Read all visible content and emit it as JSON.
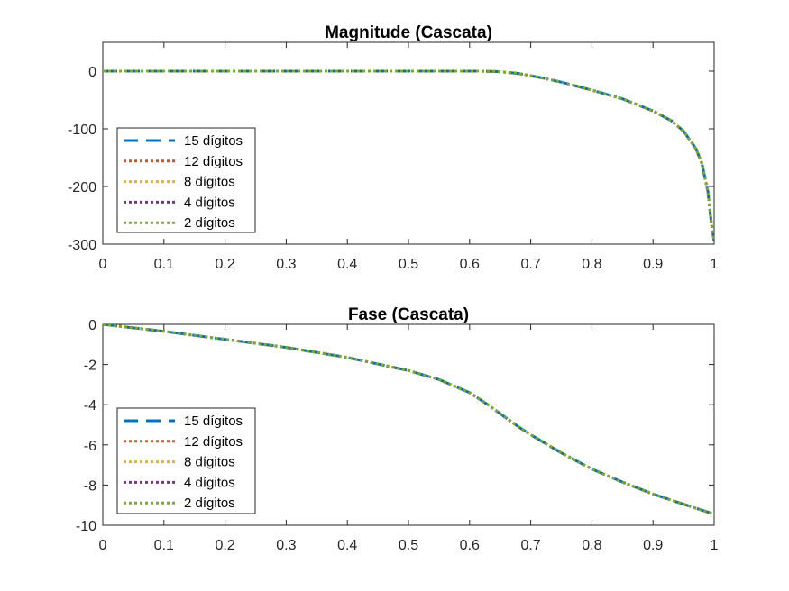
{
  "chart_data": [
    {
      "type": "line",
      "title": "Magnitude (Cascata)",
      "xlabel": "",
      "ylabel": "",
      "xlim": [
        0,
        1
      ],
      "ylim": [
        -300,
        50
      ],
      "xticks": [
        "0",
        "0.1",
        "0.2",
        "0.3",
        "0.4",
        "0.5",
        "0.6",
        "0.7",
        "0.8",
        "0.9",
        "1"
      ],
      "yticks": [
        "0",
        "-100",
        "-200",
        "-300"
      ],
      "ytick_values": [
        0,
        -100,
        -200,
        -300
      ],
      "grid": false,
      "legend_position": "lower-left",
      "x": [
        0,
        0.1,
        0.2,
        0.3,
        0.4,
        0.5,
        0.6,
        0.62,
        0.65,
        0.68,
        0.7,
        0.72,
        0.75,
        0.8,
        0.85,
        0.9,
        0.93,
        0.95,
        0.97,
        0.98,
        0.99,
        0.995,
        1.0
      ],
      "series": [
        {
          "name": "15 dígitos",
          "color": "#0072BD",
          "style": "dashed",
          "values": [
            0,
            0,
            0,
            0,
            0,
            0,
            0,
            0,
            -1,
            -4,
            -8,
            -12,
            -19,
            -33,
            -48,
            -69,
            -86,
            -104,
            -134,
            -160,
            -210,
            -260,
            -295
          ]
        },
        {
          "name": "12 dígitos",
          "color": "#D95319",
          "style": "dotted",
          "values": [
            0,
            0,
            0,
            0,
            0,
            0,
            0,
            0,
            -1,
            -4,
            -8,
            -12,
            -19,
            -33,
            -48,
            -69,
            -86,
            -104,
            -134,
            -160,
            -210,
            -260,
            -295
          ]
        },
        {
          "name": "8 dígitos",
          "color": "#EDB120",
          "style": "dotted",
          "values": [
            0,
            0,
            0,
            0,
            0,
            0,
            0,
            0,
            -1,
            -4,
            -8,
            -12,
            -19,
            -33,
            -48,
            -69,
            -86,
            -104,
            -134,
            -160,
            -210,
            -260,
            -295
          ]
        },
        {
          "name": "4 dígitos",
          "color": "#7E2F8E",
          "style": "dotted",
          "values": [
            0,
            0,
            0,
            0,
            0,
            0,
            0,
            0,
            -1,
            -4,
            -8,
            -12,
            -19,
            -33,
            -48,
            -69,
            -86,
            -104,
            -134,
            -160,
            -210,
            -260,
            -295
          ]
        },
        {
          "name": "2 dígitos",
          "color": "#77AC30",
          "style": "dotted",
          "values": [
            0,
            0,
            0,
            0,
            0,
            0,
            0,
            0,
            -1,
            -4,
            -8,
            -12,
            -19,
            -33,
            -48,
            -69,
            -86,
            -104,
            -134,
            -160,
            -210,
            -260,
            -295
          ]
        }
      ]
    },
    {
      "type": "line",
      "title": "Fase (Cascata)",
      "xlabel": "",
      "ylabel": "",
      "xlim": [
        0,
        1
      ],
      "ylim": [
        -10,
        0
      ],
      "xticks": [
        "0",
        "0.1",
        "0.2",
        "0.3",
        "0.4",
        "0.5",
        "0.6",
        "0.7",
        "0.8",
        "0.9",
        "1"
      ],
      "yticks": [
        "0",
        "-2",
        "-4",
        "-6",
        "-8",
        "-10"
      ],
      "ytick_values": [
        0,
        -2,
        -4,
        -6,
        -8,
        -10
      ],
      "grid": false,
      "legend_position": "lower-left",
      "x": [
        0,
        0.1,
        0.2,
        0.3,
        0.4,
        0.5,
        0.55,
        0.6,
        0.63,
        0.65,
        0.68,
        0.7,
        0.75,
        0.8,
        0.85,
        0.9,
        0.95,
        1.0
      ],
      "series": [
        {
          "name": "15 dígitos",
          "color": "#0072BD",
          "style": "dashed",
          "values": [
            0,
            -0.35,
            -0.75,
            -1.15,
            -1.65,
            -2.3,
            -2.75,
            -3.4,
            -4.0,
            -4.45,
            -5.1,
            -5.5,
            -6.4,
            -7.2,
            -7.85,
            -8.45,
            -8.95,
            -9.45
          ]
        },
        {
          "name": "12 dígitos",
          "color": "#D95319",
          "style": "dotted",
          "values": [
            0,
            -0.35,
            -0.75,
            -1.15,
            -1.65,
            -2.3,
            -2.75,
            -3.4,
            -4.0,
            -4.45,
            -5.1,
            -5.5,
            -6.4,
            -7.2,
            -7.85,
            -8.45,
            -8.95,
            -9.45
          ]
        },
        {
          "name": "8 dígitos",
          "color": "#EDB120",
          "style": "dotted",
          "values": [
            0,
            -0.35,
            -0.75,
            -1.15,
            -1.65,
            -2.3,
            -2.75,
            -3.4,
            -4.0,
            -4.45,
            -5.1,
            -5.5,
            -6.4,
            -7.2,
            -7.85,
            -8.45,
            -8.95,
            -9.45
          ]
        },
        {
          "name": "4 dígitos",
          "color": "#7E2F8E",
          "style": "dotted",
          "values": [
            0,
            -0.35,
            -0.75,
            -1.15,
            -1.65,
            -2.3,
            -2.75,
            -3.4,
            -4.0,
            -4.45,
            -5.1,
            -5.5,
            -6.4,
            -7.2,
            -7.85,
            -8.45,
            -8.95,
            -9.45
          ]
        },
        {
          "name": "2 dígitos",
          "color": "#77AC30",
          "style": "dotted",
          "values": [
            0,
            -0.35,
            -0.75,
            -1.15,
            -1.65,
            -2.3,
            -2.75,
            -3.4,
            -4.0,
            -4.45,
            -5.1,
            -5.5,
            -6.4,
            -7.2,
            -7.85,
            -8.45,
            -8.95,
            -9.45
          ]
        }
      ]
    }
  ]
}
